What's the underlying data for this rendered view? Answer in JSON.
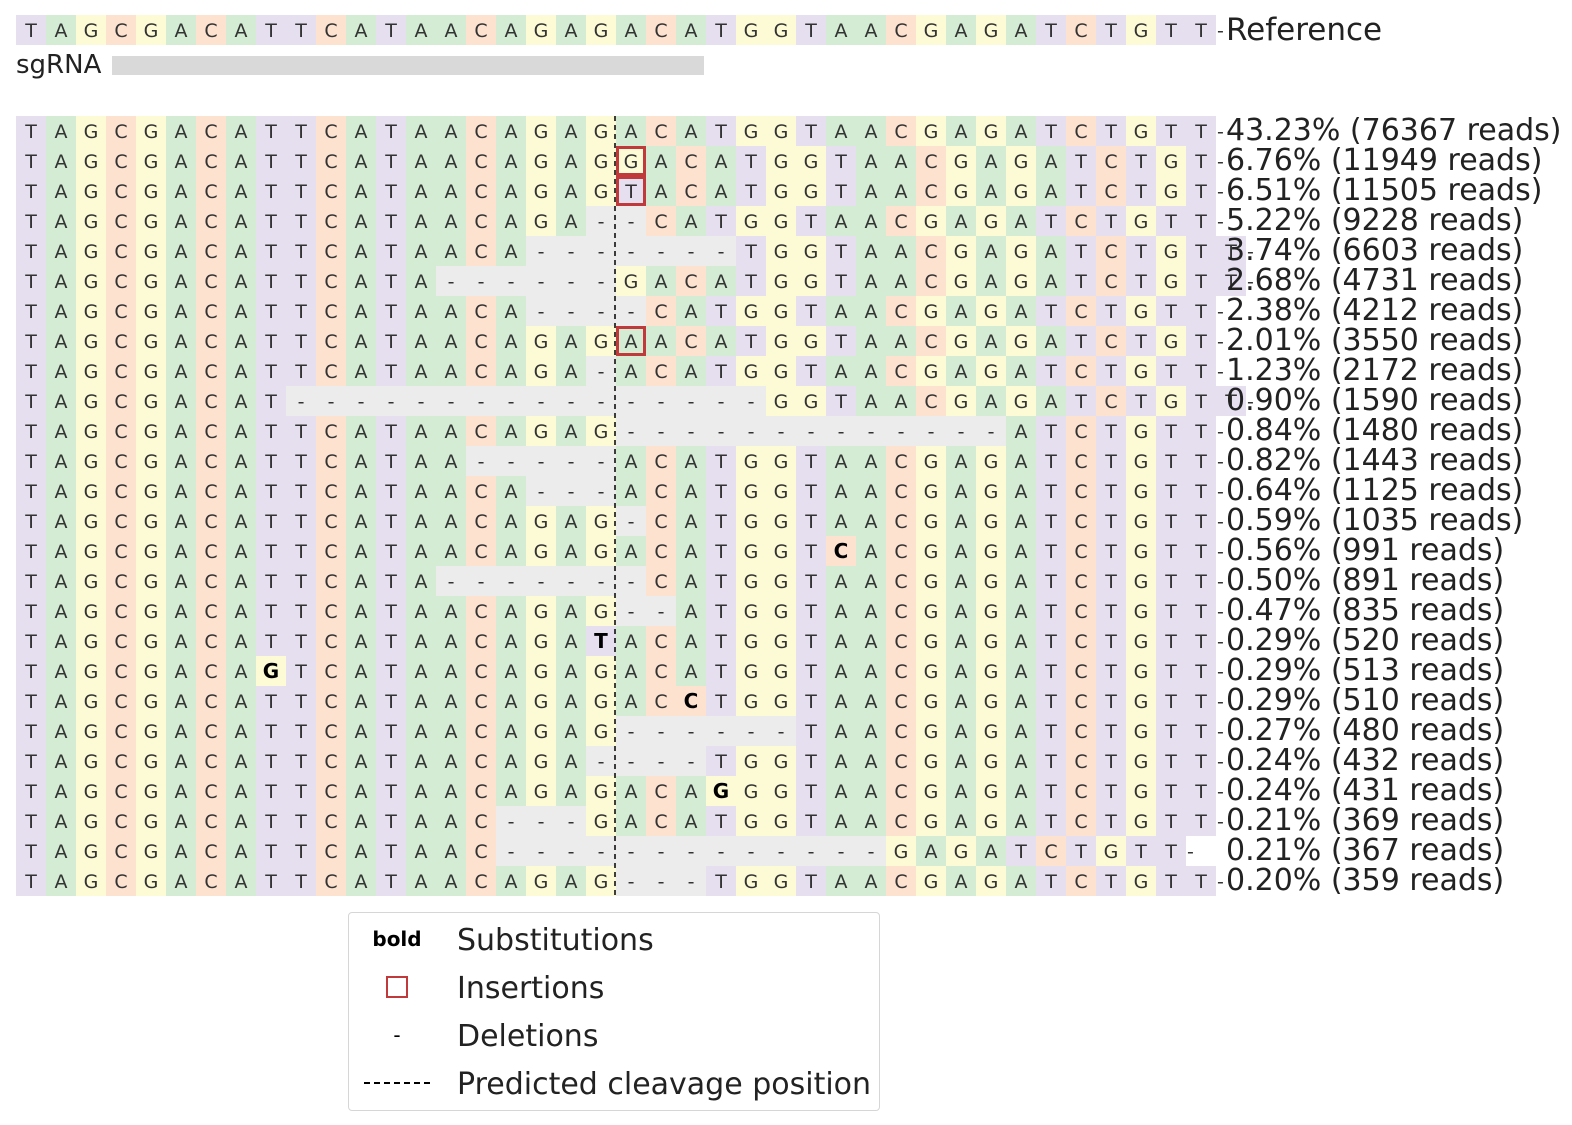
{
  "reference": {
    "sequence": "TAGCGACATTCATAACAGAGACATGGTAACGAGATCTGTT",
    "label": "Reference"
  },
  "sgrna_label": "sgRNA",
  "colors": {
    "A": "#d4ecd4",
    "T": "#e5dff0",
    "G": "#fdfbd6",
    "C": "#fde2d0",
    "gap": "#ececec",
    "sgrna_bar": "#d9d9d9",
    "insertion_box": "#c0393b"
  },
  "alleles": [
    {
      "seq": "TAGCGACATTCATAACAGAGACATGGTAACGAGATCTGTT",
      "label": "43.23% (76367 reads)"
    },
    {
      "seq": "TAGCGACATTCATAACAGAGGACATGGTAACGAGATCTGT",
      "label": "6.76% (11949 reads)",
      "ins": [
        20
      ]
    },
    {
      "seq": "TAGCGACATTCATAACAGAGTACATGGTAACGAGATCTGT",
      "label": "6.51% (11505 reads)",
      "ins": [
        20
      ]
    },
    {
      "seq": "TAGCGACATTCATAACAGA--CATGGTAACGAGATCTGTT",
      "label": "5.22% (9228 reads)"
    },
    {
      "seq": "TAGCGACATTCATAACA-------TGGTAACGAGATCTGTT",
      "label": "3.74% (6603 reads)"
    },
    {
      "seq": "TAGCGACATTCATA------GACATGGTAACGAGATCTGTT",
      "label": "2.68% (4731 reads)"
    },
    {
      "seq": "TAGCGACATTCATAACA----CATGGTAACGAGATCTGTT",
      "label": "2.38% (4212 reads)"
    },
    {
      "seq": "TAGCGACATTCATAACAGAGAACATGGTAACGAGATCTGT",
      "label": "2.01% (3550 reads)",
      "ins": [
        20
      ]
    },
    {
      "seq": "TAGCGACATTCATAACAGA-ACATGGTAACGAGATCTGTT",
      "label": "1.23% (2172 reads)"
    },
    {
      "seq": "TAGCGACAT----------------GGTAACGAGATCTGTT",
      "label": "0.90% (1590 reads)"
    },
    {
      "seq": "TAGCGACATTCATAACAGAG-------------ATCTGTT",
      "label": "0.84% (1480 reads)"
    },
    {
      "seq": "TAGCGACATTCATAA-----ACATGGTAACGAGATCTGTT",
      "label": "0.82% (1443 reads)"
    },
    {
      "seq": "TAGCGACATTCATAACA---ACATGGTAACGAGATCTGTT",
      "label": "0.64% (1125 reads)"
    },
    {
      "seq": "TAGCGACATTCATAACAGAG-CATGGTAACGAGATCTGTT",
      "label": "0.59% (1035 reads)"
    },
    {
      "seq": "TAGCGACATTCATAACAGAGACATGGTCACGAGATCTGTT",
      "label": "0.56% (991 reads)",
      "sub": [
        27
      ]
    },
    {
      "seq": "TAGCGACATTCATA-------CATGGTAACGAGATCTGTT",
      "label": "0.50% (891 reads)"
    },
    {
      "seq": "TAGCGACATTCATAACAGAG--ATGGTAACGAGATCTGTT",
      "label": "0.47% (835 reads)"
    },
    {
      "seq": "TAGCGACATTCATAACAGATACATGGTAACGAGATCTGTT",
      "label": "0.29% (520 reads)",
      "sub": [
        19
      ]
    },
    {
      "seq": "TAGCGACAGTCATAACAGAGACATGGTAACGAGATCTGTT",
      "label": "0.29% (513 reads)",
      "sub": [
        8
      ]
    },
    {
      "seq": "TAGCGACATTCATAACAGAGACCTGGTAACGAGATCTGTT",
      "label": "0.29% (510 reads)",
      "sub": [
        22
      ]
    },
    {
      "seq": "TAGCGACATTCATAACAGAG------TAACGAGATCTGTT",
      "label": "0.27% (480 reads)"
    },
    {
      "seq": "TAGCGACATTCATAACAGA----TGGTAACGAGATCTGTT",
      "label": "0.24% (432 reads)"
    },
    {
      "seq": "TAGCGACATTCATAACAGAGACAGGGTAACGAGATCTGTT",
      "label": "0.24% (431 reads)",
      "sub": [
        23
      ]
    },
    {
      "seq": "TAGCGACATTCATAAC---GACATGGTAACGAGATCTGTT",
      "label": "0.21% (369 reads)"
    },
    {
      "seq": "TAGCGACATTCATAAC-------------GAGATCTGTT",
      "label": "0.21% (367 reads)"
    },
    {
      "seq": "TAGCGACATTCATAACAGAG---TGGTAACGAGATCTGTT",
      "label": "0.20% (359 reads)"
    }
  ],
  "legend": {
    "bold_key": "bold",
    "substitutions": "Substitutions",
    "insertions": "Insertions",
    "deletions_key": "-",
    "deletions": "Deletions",
    "cleavage": "Predicted cleavage position"
  }
}
